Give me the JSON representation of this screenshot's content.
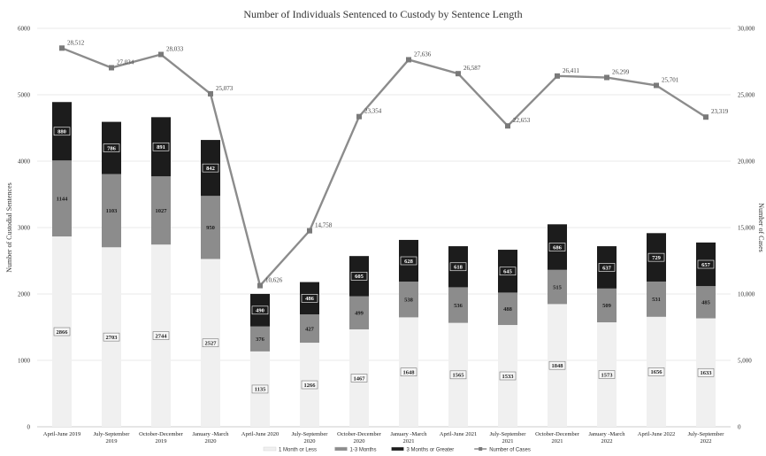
{
  "chart_data": {
    "type": "bar",
    "stacked": true,
    "title": "Number of Individuals Sentenced to Custody by Sentence Length",
    "ylabel": "Number of Custodial Sentences",
    "y2label": "Number of Cases",
    "ylim": [
      0,
      6000
    ],
    "y2lim": [
      0,
      30000
    ],
    "yticks": [
      "0",
      "1000",
      "2000",
      "3000",
      "4000",
      "5000",
      "6000"
    ],
    "y2ticks": [
      "0",
      "5,000",
      "10,000",
      "15,000",
      "20,000",
      "25,000",
      "30,000"
    ],
    "grid": true,
    "legend_position": "bottom",
    "categories": [
      [
        "April-June 2019"
      ],
      [
        "July-September",
        "2019"
      ],
      [
        "October-December",
        "2019"
      ],
      [
        "January -March",
        "2020"
      ],
      [
        "April-June 2020"
      ],
      [
        "July-September",
        "2020"
      ],
      [
        "October-December",
        "2020"
      ],
      [
        "January -March",
        "2021"
      ],
      [
        "April-June 2021"
      ],
      [
        "July-September",
        "2021"
      ],
      [
        "October-December",
        "2021"
      ],
      [
        "January -March",
        "2022"
      ],
      [
        "April-June 2022"
      ],
      [
        "July-September",
        "2022"
      ]
    ],
    "series": [
      {
        "name": "1 Month or Less",
        "color": "#f0f0f0",
        "label_color": "#222222",
        "values": [
          2866,
          2703,
          2744,
          2527,
          1135,
          1266,
          1467,
          1648,
          1565,
          1533,
          1848,
          1573,
          1656,
          1633
        ]
      },
      {
        "name": "1-3 Months",
        "color": "#8c8c8c",
        "label_color": "#1a1a1a",
        "values": [
          1144,
          1103,
          1027,
          950,
          376,
          427,
          499,
          538,
          536,
          488,
          515,
          509,
          531,
          485
        ]
      },
      {
        "name": "3 Months or Greater",
        "color": "#1c1c1c",
        "label_color": "#ffffff",
        "values": [
          880,
          786,
          891,
          842,
          490,
          486,
          605,
          628,
          618,
          645,
          686,
          637,
          729,
          657
        ]
      }
    ],
    "line_series": {
      "name": "Number of Cases",
      "axis": "right",
      "color": "#8c8c8c",
      "values": [
        28512,
        27034,
        28033,
        25073,
        10626,
        14758,
        23354,
        27636,
        26587,
        22653,
        26411,
        26299,
        25701,
        23319
      ],
      "labels": [
        "28,512",
        "27,034",
        "28,033",
        "25,073",
        "10,626",
        "14,758",
        "23,354",
        "27,636",
        "26,587",
        "22,653",
        "26,411",
        "26,299",
        "25,701",
        "23,319"
      ]
    }
  }
}
